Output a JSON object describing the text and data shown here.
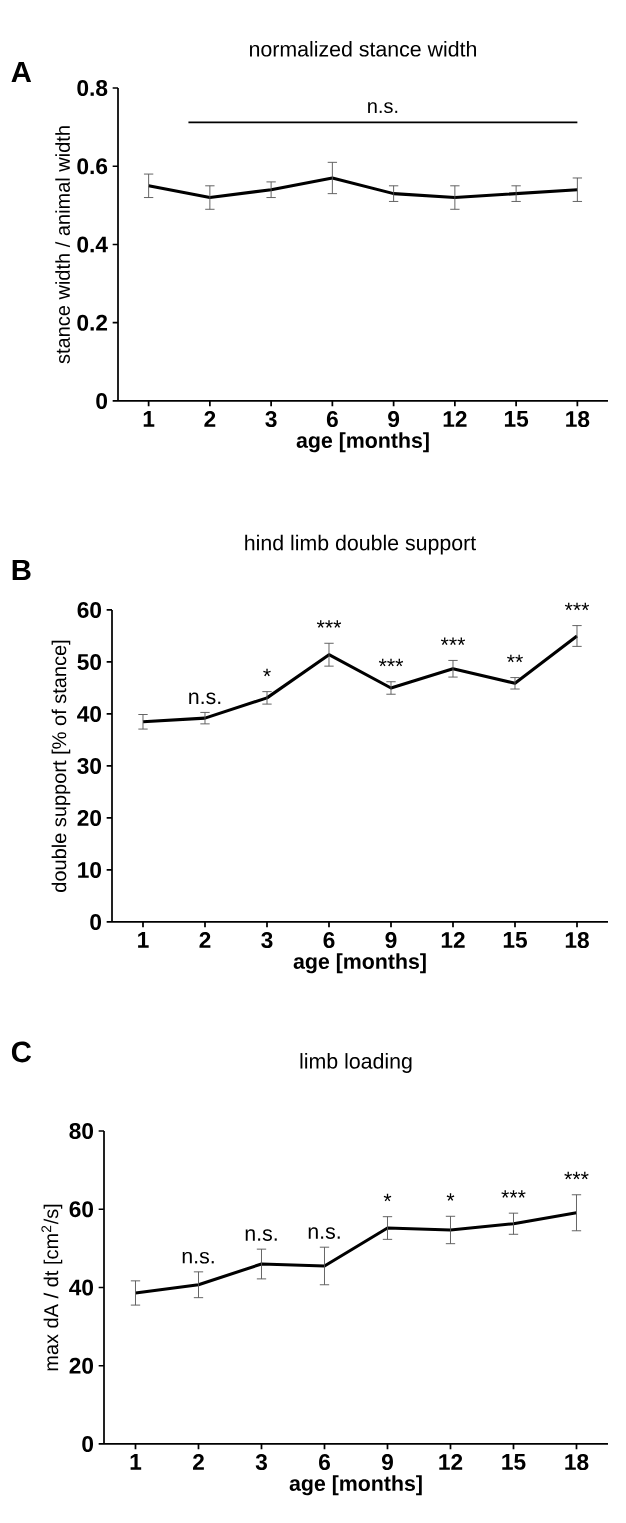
{
  "chart_data": [
    {
      "type": "line",
      "title": "normalized stance width",
      "xlabel": "age [months]",
      "ylabel": "stance width / animal width",
      "color": "#000000",
      "categories": [
        "1",
        "2",
        "3",
        "6",
        "9",
        "12",
        "15",
        "18"
      ],
      "values": [
        0.55,
        0.52,
        0.54,
        0.57,
        0.53,
        0.52,
        0.53,
        0.54
      ],
      "errors": [
        0.03,
        0.03,
        0.02,
        0.04,
        0.02,
        0.03,
        0.02,
        0.03
      ],
      "ylim": [
        0,
        0.8
      ],
      "yticks": [
        0,
        0.2,
        0.4,
        0.6,
        0.8
      ],
      "annotations": [
        "A",
        "n.s."
      ]
    },
    {
      "type": "line",
      "title": "hind limb double support",
      "xlabel": "age [months]",
      "ylabel": "double support [% of stance]",
      "color": "#000000",
      "categories": [
        "1",
        "2",
        "3",
        "6",
        "9",
        "12",
        "15",
        "18"
      ],
      "values": [
        38.5,
        39.2,
        43.1,
        51.4,
        45.0,
        48.7,
        45.9,
        55.0
      ],
      "errors": [
        1.4,
        1.1,
        1.2,
        2.2,
        1.2,
        1.6,
        1.1,
        2.0
      ],
      "ylim": [
        0,
        60
      ],
      "yticks": [
        0,
        10,
        20,
        30,
        40,
        50,
        60
      ],
      "annotations": [
        "B",
        "n.s.",
        "*",
        "***",
        "***",
        "***",
        "**",
        "***"
      ]
    },
    {
      "type": "line",
      "title": "limb loading",
      "xlabel": "age [months]",
      "ylabel": "max dA / dt [cm$^{2}$/s]",
      "color": "#000000",
      "categories": [
        "1",
        "2",
        "3",
        "6",
        "9",
        "12",
        "15",
        "18"
      ],
      "values": [
        38.6,
        40.7,
        46.0,
        45.5,
        55.2,
        54.7,
        56.3,
        59.1
      ],
      "errors": [
        3.1,
        3.3,
        3.8,
        4.8,
        2.9,
        3.5,
        2.7,
        4.6
      ],
      "ylim": [
        0,
        80
      ],
      "yticks": [
        0,
        20,
        40,
        60,
        80
      ],
      "annotations": [
        "C",
        "n.s.",
        "n.s.",
        "n.s.",
        "*",
        "*",
        "***",
        "***"
      ]
    }
  ]
}
